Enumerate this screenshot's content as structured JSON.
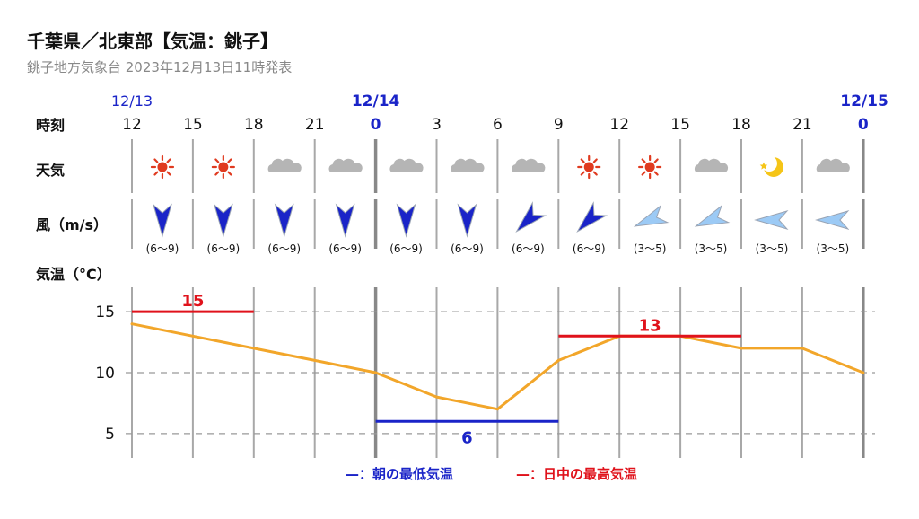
{
  "header": {
    "title": "千葉県／北東部【気温：銚子】",
    "subtitle": "銚子地方気象台 2023年12月13日11時発表"
  },
  "row_labels": {
    "time": "時刻",
    "weather": "天気",
    "wind": "風（m/s）",
    "temperature": "気温（°C）"
  },
  "dates": [
    {
      "label": "12/13",
      "slot": 0,
      "bold": false
    },
    {
      "label": "12/14",
      "slot": 4,
      "bold": true
    },
    {
      "label": "12/15",
      "slot": 12,
      "bold": true
    }
  ],
  "hours": [
    "12",
    "15",
    "18",
    "21",
    "0",
    "3",
    "6",
    "9",
    "12",
    "15",
    "18",
    "21",
    "0"
  ],
  "weather": [
    "sun-icon",
    "sun-icon",
    "cloud-icon",
    "cloud-icon",
    "cloud-icon",
    "cloud-icon",
    "cloud-icon",
    "sun-icon",
    "sun-icon",
    "cloud-icon",
    "moon-icon",
    "cloud-icon"
  ],
  "wind": [
    {
      "direction": "N",
      "speed": "(6〜9)",
      "strength": "strong"
    },
    {
      "direction": "N",
      "speed": "(6〜9)",
      "strength": "strong"
    },
    {
      "direction": "N",
      "speed": "(6〜9)",
      "strength": "strong"
    },
    {
      "direction": "N",
      "speed": "(6〜9)",
      "strength": "strong"
    },
    {
      "direction": "N",
      "speed": "(6〜9)",
      "strength": "strong"
    },
    {
      "direction": "N",
      "speed": "(6〜9)",
      "strength": "strong"
    },
    {
      "direction": "NE",
      "speed": "(6〜9)",
      "strength": "strong"
    },
    {
      "direction": "NE",
      "speed": "(6〜9)",
      "strength": "strong"
    },
    {
      "direction": "ENE",
      "speed": "(3〜5)",
      "strength": "weak"
    },
    {
      "direction": "ENE",
      "speed": "(3〜5)",
      "strength": "weak"
    },
    {
      "direction": "E",
      "speed": "(3〜5)",
      "strength": "weak"
    },
    {
      "direction": "E",
      "speed": "(3〜5)",
      "strength": "weak"
    }
  ],
  "colors": {
    "date_blue": "#1a24c8",
    "temperature_line": "#f2a62a",
    "max_temp": "#e0121b",
    "min_temp": "#1a24c8",
    "grid": "#9a9a9a",
    "sun": "#e03a1f",
    "cloud": "#b5b5b5",
    "moon": "#f5c518",
    "wind_strong": "#1a24c8",
    "wind_weak": "#9ccaf5"
  },
  "chart_data": {
    "type": "line",
    "x": [
      "12",
      "15",
      "18",
      "21",
      "0",
      "3",
      "6",
      "9",
      "12",
      "15",
      "18",
      "21",
      "0"
    ],
    "ylim": [
      3,
      17
    ],
    "yticks": [
      5,
      10,
      15
    ],
    "grid": true,
    "series": [
      {
        "values": [
          14,
          13,
          12,
          11,
          10,
          8,
          7,
          11,
          13,
          13,
          12,
          12,
          10
        ]
      }
    ],
    "extremes": [
      {
        "kind": "max",
        "value": 15,
        "label": "15",
        "start": 0,
        "end": 2
      },
      {
        "kind": "min",
        "value": 6,
        "label": "6",
        "start": 4,
        "end": 7
      },
      {
        "kind": "max",
        "value": 13,
        "label": "13",
        "start": 7,
        "end": 10
      }
    ],
    "legend": [
      {
        "marker": "—",
        "text": "：朝の最低気温",
        "color": "#1a24c8"
      },
      {
        "marker": "—",
        "text": "：日中の最高気温",
        "color": "#e0121b"
      }
    ],
    "legend_position": "bottom-center"
  }
}
